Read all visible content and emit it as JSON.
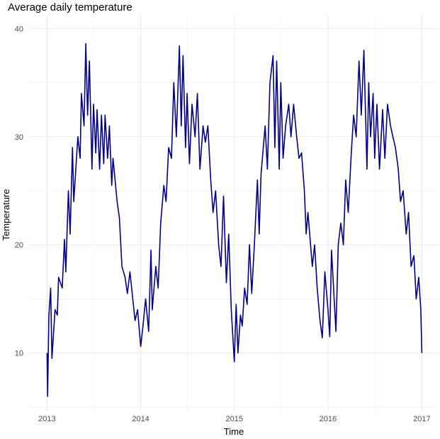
{
  "chart_data": {
    "type": "line",
    "title": "Average daily temperature",
    "xlabel": "Time",
    "ylabel": "Temperature",
    "xlim": [
      "2012-10-20",
      "2017-03-10"
    ],
    "ylim": [
      4.6,
      41.2
    ],
    "x_ticks": [
      "2013",
      "2014",
      "2015",
      "2016",
      "2017"
    ],
    "y_ticks": [
      10,
      20,
      30,
      40
    ],
    "grid": true,
    "line_color": "#00008B",
    "series": [
      {
        "points": [
          [
            "2013-01-01",
            10
          ],
          [
            "2013-01-03",
            6
          ],
          [
            "2013-01-08",
            13.5
          ],
          [
            "2013-01-15",
            16
          ],
          [
            "2013-01-20",
            9.5
          ],
          [
            "2013-02-01",
            14
          ],
          [
            "2013-02-10",
            13.5
          ],
          [
            "2013-02-15",
            17
          ],
          [
            "2013-03-01",
            16
          ],
          [
            "2013-03-10",
            20.5
          ],
          [
            "2013-03-15",
            17.5
          ],
          [
            "2013-03-25",
            25
          ],
          [
            "2013-04-01",
            21
          ],
          [
            "2013-04-10",
            29
          ],
          [
            "2013-04-15",
            24
          ],
          [
            "2013-05-01",
            30
          ],
          [
            "2013-05-10",
            28
          ],
          [
            "2013-05-15",
            34
          ],
          [
            "2013-05-25",
            31
          ],
          [
            "2013-06-01",
            38.6
          ],
          [
            "2013-06-08",
            32
          ],
          [
            "2013-06-15",
            37
          ],
          [
            "2013-06-25",
            27
          ],
          [
            "2013-07-01",
            33
          ],
          [
            "2013-07-10",
            28.5
          ],
          [
            "2013-07-15",
            32.5
          ],
          [
            "2013-07-25",
            27
          ],
          [
            "2013-08-01",
            32
          ],
          [
            "2013-08-10",
            27.5
          ],
          [
            "2013-08-15",
            32
          ],
          [
            "2013-08-25",
            28
          ],
          [
            "2013-09-01",
            31
          ],
          [
            "2013-09-10",
            25.5
          ],
          [
            "2013-09-15",
            28
          ],
          [
            "2013-10-01",
            24
          ],
          [
            "2013-10-10",
            22.5
          ],
          [
            "2013-10-20",
            18
          ],
          [
            "2013-11-01",
            17
          ],
          [
            "2013-11-10",
            15.5
          ],
          [
            "2013-11-20",
            17.5
          ],
          [
            "2013-12-01",
            15
          ],
          [
            "2013-12-10",
            13
          ],
          [
            "2013-12-20",
            14
          ],
          [
            "2014-01-01",
            10.6
          ],
          [
            "2014-01-10",
            12.5
          ],
          [
            "2014-01-20",
            15
          ],
          [
            "2014-02-01",
            12
          ],
          [
            "2014-02-10",
            19.5
          ],
          [
            "2014-02-15",
            14
          ],
          [
            "2014-03-01",
            18
          ],
          [
            "2014-03-10",
            16
          ],
          [
            "2014-03-20",
            22
          ],
          [
            "2014-04-01",
            25.5
          ],
          [
            "2014-04-10",
            24
          ],
          [
            "2014-04-20",
            29
          ],
          [
            "2014-05-01",
            28
          ],
          [
            "2014-05-10",
            35
          ],
          [
            "2014-05-20",
            30
          ],
          [
            "2014-06-01",
            38.4
          ],
          [
            "2014-06-08",
            31
          ],
          [
            "2014-06-15",
            37.5
          ],
          [
            "2014-06-25",
            29
          ],
          [
            "2014-07-01",
            34
          ],
          [
            "2014-07-10",
            27.5
          ],
          [
            "2014-07-20",
            33
          ],
          [
            "2014-08-01",
            30
          ],
          [
            "2014-08-10",
            34
          ],
          [
            "2014-08-20",
            27
          ],
          [
            "2014-09-01",
            31
          ],
          [
            "2014-09-10",
            29.5
          ],
          [
            "2014-09-20",
            31
          ],
          [
            "2014-10-01",
            26
          ],
          [
            "2014-10-10",
            23
          ],
          [
            "2014-10-20",
            25
          ],
          [
            "2014-11-01",
            20
          ],
          [
            "2014-11-10",
            18
          ],
          [
            "2014-11-20",
            24.5
          ],
          [
            "2014-12-01",
            16.5
          ],
          [
            "2014-12-10",
            21
          ],
          [
            "2014-12-20",
            14
          ],
          [
            "2015-01-01",
            9.2
          ],
          [
            "2015-01-08",
            14.5
          ],
          [
            "2015-01-15",
            10
          ],
          [
            "2015-01-25",
            13.5
          ],
          [
            "2015-02-01",
            12.5
          ],
          [
            "2015-02-10",
            16
          ],
          [
            "2015-02-20",
            14.5
          ],
          [
            "2015-03-01",
            20
          ],
          [
            "2015-03-10",
            15.5
          ],
          [
            "2015-03-20",
            20
          ],
          [
            "2015-04-01",
            26
          ],
          [
            "2015-04-08",
            21
          ],
          [
            "2015-04-15",
            26.5
          ],
          [
            "2015-05-01",
            31
          ],
          [
            "2015-05-10",
            27
          ],
          [
            "2015-05-20",
            35
          ],
          [
            "2015-06-01",
            37.5
          ],
          [
            "2015-06-08",
            29
          ],
          [
            "2015-06-15",
            37
          ],
          [
            "2015-06-25",
            27
          ],
          [
            "2015-07-01",
            35
          ],
          [
            "2015-07-10",
            28
          ],
          [
            "2015-07-20",
            31
          ],
          [
            "2015-08-01",
            33
          ],
          [
            "2015-08-10",
            30
          ],
          [
            "2015-08-20",
            33
          ],
          [
            "2015-09-01",
            30
          ],
          [
            "2015-09-10",
            28
          ],
          [
            "2015-09-20",
            28.5
          ],
          [
            "2015-10-01",
            25
          ],
          [
            "2015-10-08",
            21
          ],
          [
            "2015-10-15",
            23
          ],
          [
            "2015-11-01",
            18
          ],
          [
            "2015-11-10",
            20
          ],
          [
            "2015-11-20",
            16
          ],
          [
            "2015-12-01",
            13
          ],
          [
            "2015-12-10",
            11.4
          ],
          [
            "2015-12-20",
            17.5
          ],
          [
            "2016-01-01",
            14
          ],
          [
            "2016-01-08",
            11.5
          ],
          [
            "2016-01-15",
            19.5
          ],
          [
            "2016-02-01",
            12
          ],
          [
            "2016-02-10",
            20
          ],
          [
            "2016-02-20",
            22
          ],
          [
            "2016-03-01",
            20
          ],
          [
            "2016-03-10",
            26
          ],
          [
            "2016-03-20",
            23
          ],
          [
            "2016-04-01",
            28.5
          ],
          [
            "2016-04-10",
            32
          ],
          [
            "2016-04-20",
            30
          ],
          [
            "2016-05-01",
            37
          ],
          [
            "2016-05-10",
            32
          ],
          [
            "2016-05-20",
            38
          ],
          [
            "2016-06-01",
            27
          ],
          [
            "2016-06-08",
            35
          ],
          [
            "2016-06-15",
            30
          ],
          [
            "2016-06-25",
            34
          ],
          [
            "2016-07-01",
            28
          ],
          [
            "2016-07-10",
            33
          ],
          [
            "2016-07-20",
            27
          ],
          [
            "2016-08-01",
            32.5
          ],
          [
            "2016-08-10",
            28
          ],
          [
            "2016-08-20",
            33
          ],
          [
            "2016-09-01",
            31
          ],
          [
            "2016-09-10",
            30
          ],
          [
            "2016-09-20",
            29
          ],
          [
            "2016-10-01",
            27
          ],
          [
            "2016-10-10",
            24
          ],
          [
            "2016-10-20",
            25
          ],
          [
            "2016-11-01",
            21
          ],
          [
            "2016-11-10",
            23
          ],
          [
            "2016-11-20",
            18
          ],
          [
            "2016-12-01",
            19
          ],
          [
            "2016-12-10",
            15
          ],
          [
            "2016-12-20",
            17
          ],
          [
            "2016-12-28",
            14
          ],
          [
            "2017-01-01",
            10
          ]
        ]
      }
    ]
  }
}
